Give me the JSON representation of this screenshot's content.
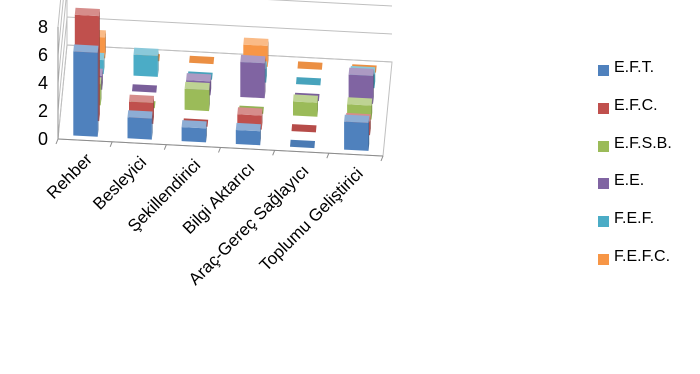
{
  "chart_data": {
    "type": "bar",
    "subtype": "3d-clustered-column",
    "title": "",
    "xlabel": "",
    "ylabel": "",
    "ylim": [
      0,
      8
    ],
    "yticks": [
      0,
      2,
      4,
      6,
      8
    ],
    "grid": true,
    "legend_position": "right",
    "categories": [
      "Rehber",
      "Besleyici",
      "Şekillendirici",
      "Bilgi Aktarıcı",
      "Araç-Gereç Sağlayıcı",
      "Toplumu Geliştirici"
    ],
    "series": [
      {
        "name": "E.F.T.",
        "color": "#4F81BD",
        "values": [
          6,
          1.5,
          1,
          1,
          0,
          2
        ]
      },
      {
        "name": "E.F.C.",
        "color": "#C0504D",
        "values": [
          7.5,
          1.5,
          0,
          1,
          0,
          1
        ]
      },
      {
        "name": "E.F.S.B.",
        "color": "#9BBB59",
        "values": [
          1.5,
          0,
          1.5,
          0,
          1,
          1
        ]
      },
      {
        "name": "E.E.",
        "color": "#8064A2",
        "values": [
          1,
          0,
          1,
          2.5,
          0,
          2
        ]
      },
      {
        "name": "F.E.F.",
        "color": "#4BACC6",
        "values": [
          1,
          1.5,
          0,
          1,
          0,
          1
        ]
      },
      {
        "name": "F.E.F.C.",
        "color": "#F79646",
        "values": [
          1.5,
          0,
          0,
          1.5,
          0,
          0
        ]
      }
    ]
  }
}
